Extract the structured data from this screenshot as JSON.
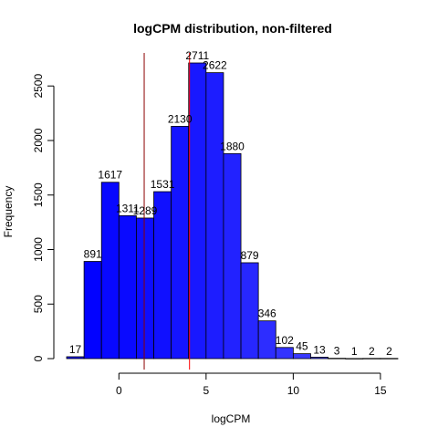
{
  "chart_data": {
    "type": "bar",
    "title": "logCPM distribution, non-filtered",
    "xlabel": "logCPM",
    "ylabel": "Frequency",
    "bin_edges": [
      -3,
      -2,
      -1,
      0,
      1,
      2,
      3,
      4,
      5,
      6,
      7,
      8,
      9,
      10,
      11,
      12,
      13,
      14,
      15,
      16
    ],
    "values": [
      17,
      891,
      1617,
      1311,
      1289,
      1531,
      2130,
      2711,
      2622,
      1880,
      879,
      346,
      102,
      45,
      13,
      3,
      1,
      2,
      2
    ],
    "data_labels": [
      "17",
      "891",
      "1617",
      "1311",
      "1289",
      "1531",
      "2130",
      "2711",
      "2622",
      "1880",
      "879",
      "346",
      "102",
      "45",
      "13",
      "3",
      "1",
      "2",
      "2"
    ],
    "bar_colors": [
      "#0000ff",
      "#0202ff",
      "#0808ff",
      "#0a0aff",
      "#0d0dff",
      "#1010ff",
      "#1414ff",
      "#1818ff",
      "#1d1dff",
      "#2222ff",
      "#2727ff",
      "#2d2dff",
      "#3333ff",
      "#3939ff",
      "#4040ff",
      "#4747ff",
      "#4e4eff",
      "#5555ff",
      "#5c5cff"
    ],
    "xticks": [
      0,
      5,
      10,
      15
    ],
    "xtick_labels": [
      "0",
      "5",
      "10",
      "15"
    ],
    "yticks": [
      0,
      500,
      1000,
      1500,
      2000,
      2500
    ],
    "ytick_labels": [
      "0",
      "500",
      "1000",
      "1500",
      "2000",
      "2500"
    ],
    "xlim": [
      -3,
      16
    ],
    "ylim": [
      0,
      2711
    ],
    "vlines": [
      {
        "x": 1.45,
        "color": "#8b0000"
      },
      {
        "x": 4.05,
        "color": "#ff0000"
      }
    ],
    "grid": false
  }
}
